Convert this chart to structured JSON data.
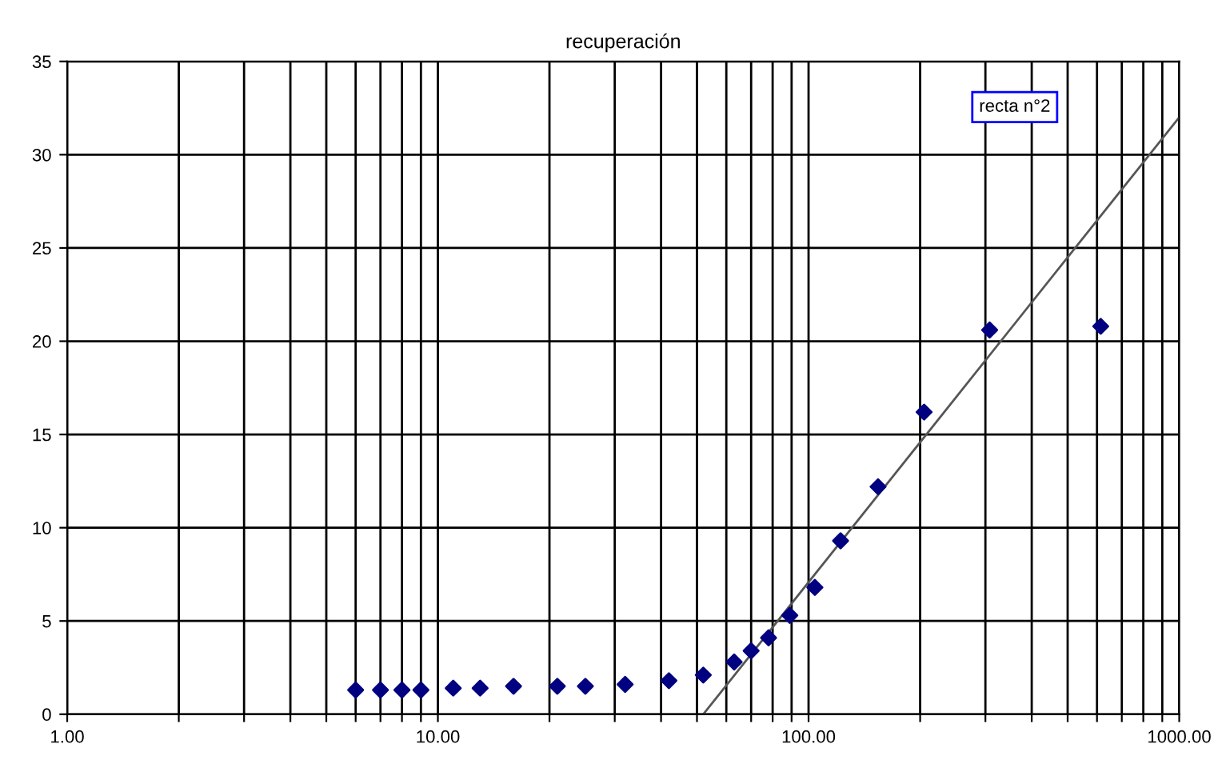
{
  "chart_data": {
    "type": "scatter",
    "title": "recuperación",
    "log": "x",
    "grid": true,
    "marker": "diamond",
    "xlim": [
      1,
      1000
    ],
    "ylim": [
      0,
      35
    ],
    "xticks": [
      {
        "value": 1,
        "label": "1.00"
      },
      {
        "value": 2,
        "label": null
      },
      {
        "value": 3,
        "label": null
      },
      {
        "value": 4,
        "label": null
      },
      {
        "value": 5,
        "label": null
      },
      {
        "value": 6,
        "label": null
      },
      {
        "value": 7,
        "label": null
      },
      {
        "value": 8,
        "label": null
      },
      {
        "value": 9,
        "label": null
      },
      {
        "value": 10,
        "label": "10.00"
      },
      {
        "value": 20,
        "label": null
      },
      {
        "value": 30,
        "label": null
      },
      {
        "value": 40,
        "label": null
      },
      {
        "value": 50,
        "label": null
      },
      {
        "value": 60,
        "label": null
      },
      {
        "value": 70,
        "label": null
      },
      {
        "value": 80,
        "label": null
      },
      {
        "value": 90,
        "label": null
      },
      {
        "value": 100,
        "label": "100.00"
      },
      {
        "value": 200,
        "label": null
      },
      {
        "value": 300,
        "label": null
      },
      {
        "value": 400,
        "label": null
      },
      {
        "value": 500,
        "label": null
      },
      {
        "value": 600,
        "label": null
      },
      {
        "value": 700,
        "label": null
      },
      {
        "value": 800,
        "label": null
      },
      {
        "value": 900,
        "label": null
      },
      {
        "value": 1000,
        "label": "1000.00"
      }
    ],
    "yticks": [
      0,
      5,
      10,
      15,
      20,
      25,
      30,
      35
    ],
    "series": [
      {
        "color": "#000080",
        "x": [
          6,
          7,
          8,
          9,
          11,
          13,
          16,
          21,
          25,
          32,
          42,
          52,
          63,
          70,
          78,
          89,
          104,
          122,
          154,
          205,
          308,
          614
        ],
        "values": [
          1.3,
          1.3,
          1.3,
          1.3,
          1.4,
          1.4,
          1.5,
          1.5,
          1.5,
          1.6,
          1.8,
          2.1,
          2.8,
          3.4,
          4.1,
          5.3,
          6.8,
          9.3,
          12.2,
          16.2,
          20.6,
          20.8
        ]
      },
      {
        "type": "line",
        "color": "#555555",
        "marker": "none",
        "x": [
          52,
          1000
        ],
        "values": [
          0,
          32
        ]
      }
    ],
    "annotations": [
      "recta n°2"
    ]
  }
}
